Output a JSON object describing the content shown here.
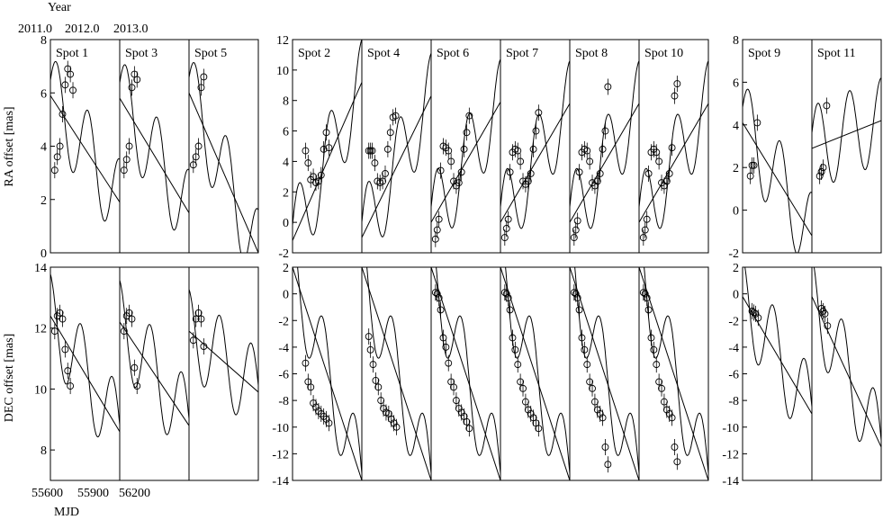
{
  "labels": {
    "top_axis_title": "Year",
    "bottom_axis_title": "MJD",
    "ra_ylabel": "RA offset [mas]",
    "dec_ylabel": "DEC offset [mas]",
    "year_ticks": [
      "2011.0",
      "2012.0",
      "2013.0"
    ],
    "mjd_ticks": [
      "55600",
      "55900",
      "56200"
    ]
  },
  "chart_data": {
    "type": "scatter",
    "xlabel": "MJD",
    "xlim": [
      55550,
      56350
    ],
    "groups": [
      {
        "ra_ylim": [
          0,
          8
        ],
        "ra_ticks": [
          0,
          2,
          4,
          6,
          8
        ],
        "dec_ylim": [
          7,
          14
        ],
        "dec_ticks": [
          8,
          10,
          12,
          14
        ],
        "spots": [
          {
            "name": "Spot 1",
            "ra": {
              "x": [
                55600,
                55630,
                55660,
                55690,
                55720,
                55750,
                55780,
                55810
              ],
              "y": [
                3.1,
                3.6,
                4.0,
                5.2,
                6.3,
                6.9,
                6.7,
                6.1
              ],
              "line": [
                5.9,
                1.9
              ]
            },
            "dec": {
              "x": [
                55600,
                55630,
                55660,
                55690,
                55720,
                55750,
                55780
              ],
              "y": [
                11.9,
                12.4,
                12.5,
                12.3,
                11.3,
                10.6,
                10.1
              ],
              "line": [
                12.4,
                8.6
              ]
            }
          },
          {
            "name": "Spot 3",
            "ra": {
              "x": [
                55600,
                55630,
                55660,
                55690,
                55720,
                55750
              ],
              "y": [
                3.1,
                3.5,
                4.0,
                6.2,
                6.7,
                6.5
              ],
              "line": [
                5.8,
                1.5
              ]
            },
            "dec": {
              "x": [
                55600,
                55630,
                55660,
                55690,
                55720,
                55750
              ],
              "y": [
                11.9,
                12.4,
                12.5,
                12.3,
                10.7,
                10.1
              ],
              "line": [
                12.2,
                8.8
              ]
            }
          },
          {
            "name": "Spot 5",
            "ra": {
              "x": [
                55600,
                55630,
                55660,
                55690,
                55720
              ],
              "y": [
                3.3,
                3.6,
                4.0,
                6.2,
                6.6
              ],
              "line": [
                6.0,
                0
              ]
            },
            "dec": {
              "x": [
                55600,
                55630,
                55660,
                55690,
                55720
              ],
              "y": [
                11.6,
                12.3,
                12.5,
                12.3,
                11.4
              ],
              "line": [
                11.9,
                9.9
              ]
            }
          }
        ]
      },
      {
        "ra_ylim": [
          -2,
          12
        ],
        "ra_ticks": [
          -2,
          0,
          2,
          4,
          6,
          8,
          10,
          12
        ],
        "dec_ylim": [
          -14,
          2
        ],
        "dec_ticks": [
          -14,
          -12,
          -10,
          -8,
          -6,
          -4,
          -2,
          0,
          2
        ],
        "spots": [
          {
            "name": "Spot 2",
            "ra": {
              "x": [
                55700,
                55730,
                55760,
                55790,
                55820,
                55850,
                55880,
                55910,
                55940,
                55970
              ],
              "y": [
                4.7,
                3.9,
                2.8,
                3.0,
                2.6,
                2.7,
                3.1,
                4.8,
                5.9,
                4.9
              ],
              "line": [
                -1.2,
                9.2
              ]
            },
            "dec": {
              "x": [
                55700,
                55730,
                55760,
                55790,
                55820,
                55850,
                55880,
                55910,
                55940,
                55970
              ],
              "y": [
                -5.2,
                -6.6,
                -7.0,
                -8.2,
                -8.5,
                -8.8,
                -9.0,
                -9.2,
                -9.4,
                -9.7
              ],
              "line": [
                2.0,
                -14.0
              ]
            }
          },
          {
            "name": "Spot 4",
            "ra": {
              "x": [
                55630,
                55650,
                55670,
                55700,
                55730,
                55760,
                55790,
                55820,
                55850,
                55880,
                55910,
                55940
              ],
              "y": [
                4.7,
                4.7,
                4.7,
                3.9,
                2.7,
                2.6,
                2.7,
                3.2,
                4.8,
                5.9,
                6.9,
                7.0
              ],
              "line": [
                -1.0,
                8.3
              ]
            },
            "dec": {
              "x": [
                55630,
                55650,
                55680,
                55710,
                55740,
                55770,
                55800,
                55830,
                55860,
                55890,
                55920,
                55950
              ],
              "y": [
                -3.2,
                -4.2,
                -5.3,
                -6.5,
                -7.0,
                -8.0,
                -8.6,
                -8.9,
                -9.0,
                -9.4,
                -9.7,
                -10.0
              ],
              "line": [
                2.0,
                -14.0
              ]
            }
          },
          {
            "name": "Spot 6",
            "ra": {
              "x": [
                55600,
                55620,
                55640,
                55660,
                55690,
                55720,
                55750,
                55780,
                55810,
                55840,
                55870,
                55900,
                55930,
                55960,
                55990
              ],
              "y": [
                -1.1,
                -0.5,
                0.2,
                3.4,
                5.0,
                4.9,
                4.7,
                4.0,
                2.7,
                2.4,
                2.6,
                3.3,
                4.8,
                5.9,
                7.0
              ],
              "line": [
                0.0,
                7.9
              ]
            },
            "dec": {
              "x": [
                55600,
                55620,
                55640,
                55660,
                55690,
                55720,
                55750,
                55780,
                55810,
                55840,
                55870,
                55900,
                55930,
                55960,
                55990
              ],
              "y": [
                0.1,
                0.0,
                -0.3,
                -1.2,
                -3.3,
                -4.0,
                -5.2,
                -6.6,
                -7.0,
                -8.0,
                -8.6,
                -8.9,
                -9.2,
                -9.6,
                -10.1
              ],
              "line": [
                2.0,
                -14.0
              ]
            }
          },
          {
            "name": "Spot 7",
            "ra": {
              "x": [
                55600,
                55620,
                55640,
                55660,
                55690,
                55720,
                55750,
                55780,
                55810,
                55840,
                55870,
                55900,
                55930,
                55960,
                55990
              ],
              "y": [
                -1.0,
                -0.4,
                0.2,
                3.3,
                4.6,
                4.8,
                4.7,
                4.0,
                2.7,
                2.5,
                2.7,
                3.2,
                4.8,
                6.0,
                7.2
              ],
              "line": [
                0.0,
                7.8
              ]
            },
            "dec": {
              "x": [
                55600,
                55620,
                55640,
                55660,
                55690,
                55720,
                55750,
                55780,
                55810,
                55840,
                55870,
                55900,
                55930,
                55960,
                55990
              ],
              "y": [
                0.1,
                0.0,
                -0.3,
                -1.2,
                -3.3,
                -4.2,
                -5.3,
                -6.6,
                -7.1,
                -8.1,
                -8.7,
                -9.0,
                -9.3,
                -9.7,
                -10.1
              ],
              "line": [
                2.0,
                -14.0
              ]
            }
          },
          {
            "name": "Spot 8",
            "ra": {
              "x": [
                55600,
                55620,
                55640,
                55660,
                55690,
                55720,
                55750,
                55780,
                55810,
                55840,
                55870,
                55900,
                55930,
                55960,
                55990
              ],
              "y": [
                -1.0,
                -0.5,
                0.1,
                3.3,
                4.6,
                4.8,
                4.7,
                4.0,
                2.6,
                2.4,
                2.7,
                3.2,
                4.8,
                6.0,
                8.9
              ],
              "line": [
                0.0,
                7.8
              ]
            },
            "dec": {
              "x": [
                55600,
                55620,
                55640,
                55660,
                55690,
                55720,
                55750,
                55780,
                55810,
                55840,
                55870,
                55900,
                55930,
                55960,
                55990
              ],
              "y": [
                0.1,
                0.0,
                -0.3,
                -1.2,
                -3.3,
                -4.2,
                -5.3,
                -6.6,
                -7.1,
                -8.1,
                -8.7,
                -9.0,
                -9.3,
                -11.5,
                -12.8
              ],
              "line": [
                2.0,
                -14.0
              ]
            }
          },
          {
            "name": "Spot 10",
            "ra": {
              "x": [
                55600,
                55620,
                55640,
                55660,
                55690,
                55720,
                55750,
                55780,
                55810,
                55840,
                55870,
                55900,
                55930,
                55960,
                55990
              ],
              "y": [
                -1.0,
                -0.5,
                0.2,
                3.2,
                4.6,
                4.8,
                4.6,
                4.0,
                2.6,
                2.4,
                2.7,
                3.2,
                4.9,
                8.3,
                9.1
              ],
              "line": [
                0.0,
                7.8
              ]
            },
            "dec": {
              "x": [
                55600,
                55620,
                55640,
                55660,
                55690,
                55720,
                55750,
                55780,
                55810,
                55840,
                55870,
                55900,
                55930,
                55960,
                55990
              ],
              "y": [
                0.1,
                0.0,
                -0.3,
                -1.2,
                -3.3,
                -4.2,
                -5.3,
                -6.6,
                -7.1,
                -8.1,
                -8.7,
                -9.0,
                -9.3,
                -11.5,
                -12.6
              ],
              "line": [
                2.0,
                -14.0
              ]
            }
          }
        ]
      },
      {
        "ra_ylim": [
          -2,
          8
        ],
        "ra_ticks": [
          -2,
          0,
          2,
          4,
          6,
          8
        ],
        "dec_ylim": [
          -14,
          2
        ],
        "dec_ticks": [
          -14,
          -12,
          -10,
          -8,
          -6,
          -4,
          -2,
          0,
          2
        ],
        "spots": [
          {
            "name": "Spot 9",
            "ra": {
              "x": [
                55640,
                55660,
                55680,
                55720
              ],
              "y": [
                1.6,
                2.1,
                2.1,
                4.1
              ],
              "line": [
                4.1,
                -1.2
              ]
            },
            "dec": {
              "x": [
                55660,
                55680,
                55700,
                55730
              ],
              "y": [
                -1.3,
                -1.4,
                -1.5,
                -1.8
              ],
              "line": [
                -0.2,
                -9.0
              ]
            }
          },
          {
            "name": "Spot 11",
            "ra": {
              "x": [
                55640,
                55660,
                55680,
                55720
              ],
              "y": [
                1.6,
                1.8,
                2.0,
                4.9
              ],
              "line": [
                2.9,
                4.2
              ]
            },
            "dec": {
              "x": [
                55660,
                55680,
                55700,
                55730
              ],
              "y": [
                -1.1,
                -1.3,
                -1.5,
                -2.4
              ],
              "line": [
                -0.2,
                -11.5
              ]
            }
          }
        ]
      }
    ]
  }
}
